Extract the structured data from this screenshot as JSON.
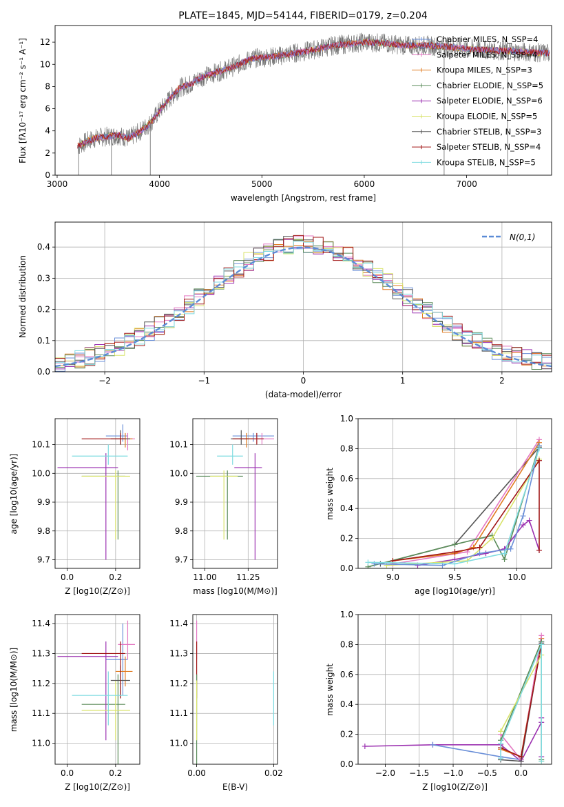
{
  "chart_data": [
    {
      "type": "line",
      "title": "PLATE=1845, MJD=54144, FIBERID=0179, z=0.204",
      "xlabel": "wavelength [Angstrom, rest frame]",
      "ylabel": "Flux [fλ10⁻¹⁷ erg cm⁻² s⁻¹ A⁻¹]",
      "xlim": [
        2980,
        7830
      ],
      "ylim": [
        0,
        13.5
      ],
      "xticks": [
        3000,
        4000,
        5000,
        6000,
        7000
      ],
      "yticks": [
        0,
        2,
        4,
        6,
        8,
        10,
        12
      ],
      "grid": false,
      "legend_position": "top-right",
      "spectrum_range": [
        3200,
        7810
      ],
      "continuum_x": [
        3200,
        3300,
        3400,
        3500,
        3600,
        3700,
        3800,
        3900,
        4000,
        4100,
        4200,
        4300,
        4400,
        4500,
        4600,
        4700,
        4800,
        4900,
        5000,
        5100,
        5200,
        5300,
        5400,
        5500,
        5600,
        5700,
        5800,
        5900,
        6000,
        6200,
        6400,
        6600,
        6800,
        7000,
        7200,
        7400,
        7600,
        7800
      ],
      "continuum_y": [
        2.6,
        3.1,
        3.4,
        3.5,
        3.6,
        3.3,
        3.9,
        4.6,
        5.8,
        6.9,
        7.9,
        8.2,
        8.8,
        9.1,
        9.4,
        9.7,
        10.1,
        10.5,
        10.6,
        10.7,
        10.8,
        11.0,
        11.1,
        11.3,
        11.5,
        11.7,
        11.8,
        11.9,
        12.0,
        11.9,
        11.7,
        11.7,
        11.6,
        11.4,
        11.3,
        11.2,
        11.1,
        11.0
      ],
      "series": [
        {
          "name": "Chabrier MILES, N_SSP=4",
          "color": "#6a8fd8"
        },
        {
          "name": "Salpeter MILES, N_SSP=4",
          "color": "#e377c2"
        },
        {
          "name": "Kroupa MILES, N_SSP=3",
          "color": "#e07b22"
        },
        {
          "name": "Chabrier ELODIE, N_SSP=5",
          "color": "#5b8c5a"
        },
        {
          "name": "Salpeter ELODIE, N_SSP=6",
          "color": "#9b30b0"
        },
        {
          "name": "Kroupa ELODIE, N_SSP=5",
          "color": "#d8e36a"
        },
        {
          "name": "Chabrier STELIB, N_SSP=3",
          "color": "#555555"
        },
        {
          "name": "Salpeter STELIB, N_SSP=4",
          "color": "#a01515"
        },
        {
          "name": "Kroupa STELIB, N_SSP=5",
          "color": "#7fdbe0"
        }
      ]
    },
    {
      "type": "histogram",
      "xlabel": "(data-model)/error",
      "ylabel": "Normed distribution",
      "xlim": [
        -2.5,
        2.5
      ],
      "ylim": [
        0,
        0.48
      ],
      "xticks": [
        -2,
        -1,
        0,
        1,
        2
      ],
      "yticks": [
        0.0,
        0.1,
        0.2,
        0.3,
        0.4
      ],
      "grid": true,
      "legend": "N(0,1)",
      "legend_position": "top-right",
      "bin_width": 0.1,
      "reference_curve": "gaussian mean 0 sigma 1",
      "series_colors": [
        "#6a8fd8",
        "#e377c2",
        "#e07b22",
        "#5b8c5a",
        "#9b30b0",
        "#d8e36a",
        "#555555",
        "#a01515",
        "#7fdbe0"
      ]
    },
    {
      "type": "errorbar",
      "xlabel": "Z [log10(Z/Z⊙)]",
      "ylabel": "age  [log10(age/yr)]",
      "xlim": [
        -0.05,
        0.3
      ],
      "ylim": [
        9.67,
        10.19
      ],
      "xticks": [
        0.0,
        0.2
      ],
      "yticks": [
        9.7,
        9.8,
        9.9,
        10.0,
        10.1
      ],
      "grid": true,
      "points": [
        {
          "color": "#6a8fd8",
          "x": 0.23,
          "xerr": [
            0.07,
            0.02
          ],
          "y": 10.13,
          "yerr": [
            0.02,
            0.04
          ]
        },
        {
          "color": "#e377c2",
          "x": 0.25,
          "xerr": [
            0.05,
            0.03
          ],
          "y": 10.12,
          "yerr": [
            0.04,
            0.02
          ]
        },
        {
          "color": "#e07b22",
          "x": 0.24,
          "xerr": [
            0.06,
            0.03
          ],
          "y": 10.12,
          "yerr": [
            0.03,
            0.02
          ]
        },
        {
          "color": "#5b8c5a",
          "x": 0.21,
          "xerr": [
            0.15,
            0.03
          ],
          "y": 9.99,
          "yerr": [
            0.22,
            0.02
          ]
        },
        {
          "color": "#9b30b0",
          "x": 0.16,
          "xerr": [
            0.2,
            0.05
          ],
          "y": 10.02,
          "yerr": [
            0.32,
            0.05
          ]
        },
        {
          "color": "#d8e36a",
          "x": 0.2,
          "xerr": [
            0.14,
            0.06
          ],
          "y": 9.99,
          "yerr": [
            0.22,
            0.02
          ]
        },
        {
          "color": "#555555",
          "x": 0.22,
          "xerr": [
            0.04,
            0.04
          ],
          "y": 10.12,
          "yerr": [
            0.02,
            0.03
          ]
        },
        {
          "color": "#a01515",
          "x": 0.22,
          "xerr": [
            0.16,
            0.02
          ],
          "y": 10.12,
          "yerr": [
            0.02,
            0.02
          ]
        },
        {
          "color": "#7fdbe0",
          "x": 0.17,
          "xerr": [
            0.15,
            0.08
          ],
          "y": 10.06,
          "yerr": [
            0.03,
            0.04
          ]
        }
      ]
    },
    {
      "type": "errorbar",
      "xlabel": "mass [log10(M/M⊙)]",
      "xlim": [
        10.93,
        11.42
      ],
      "ylim": [
        9.67,
        10.19
      ],
      "xticks": [
        11.0,
        11.25
      ],
      "yticks": [
        9.7,
        9.8,
        9.9,
        10.0,
        10.1
      ],
      "grid": true,
      "points": [
        {
          "color": "#6a8fd8",
          "x": 11.28,
          "xerr": [
            0.12,
            0.12
          ],
          "y": 10.13,
          "yerr": [
            0.02,
            0.01
          ]
        },
        {
          "color": "#e377c2",
          "x": 11.33,
          "xerr": [
            0.05,
            0.07
          ],
          "y": 10.12,
          "yerr": [
            0.02,
            0.02
          ]
        },
        {
          "color": "#e07b22",
          "x": 11.24,
          "xerr": [
            0.04,
            0.04
          ],
          "y": 10.12,
          "yerr": [
            0.03,
            0.02
          ]
        },
        {
          "color": "#5b8c5a",
          "x": 11.13,
          "xerr": [
            0.18,
            0.09
          ],
          "y": 9.99,
          "yerr": [
            0.22,
            0.02
          ]
        },
        {
          "color": "#9b30b0",
          "x": 11.29,
          "xerr": [
            0.12,
            0.04
          ],
          "y": 10.02,
          "yerr": [
            0.32,
            0.05
          ]
        },
        {
          "color": "#d8e36a",
          "x": 11.11,
          "xerr": [
            0.08,
            0.08
          ],
          "y": 9.99,
          "yerr": [
            0.22,
            0.02
          ]
        },
        {
          "color": "#555555",
          "x": 11.21,
          "xerr": [
            0.06,
            0.04
          ],
          "y": 10.12,
          "yerr": [
            0.02,
            0.03
          ]
        },
        {
          "color": "#a01515",
          "x": 11.3,
          "xerr": [
            0.14,
            0.04
          ],
          "y": 10.12,
          "yerr": [
            0.02,
            0.02
          ]
        },
        {
          "color": "#7fdbe0",
          "x": 11.16,
          "xerr": [
            0.09,
            0.06
          ],
          "y": 10.06,
          "yerr": [
            0.03,
            0.04
          ]
        }
      ]
    },
    {
      "type": "line",
      "xlabel": "age  [log10(age/yr)]",
      "ylabel": "mass weight",
      "xlim": [
        8.72,
        10.28
      ],
      "ylim": [
        0,
        1.0
      ],
      "xticks": [
        9.0,
        9.5,
        10.0
      ],
      "yticks": [
        0.0,
        0.2,
        0.4,
        0.6,
        0.8,
        1.0
      ],
      "grid": true,
      "series": [
        {
          "color": "#555555",
          "x": [
            8.9,
            9.5,
            10.18
          ],
          "y": [
            0.03,
            0.16,
            0.81
          ]
        },
        {
          "color": "#e377c2",
          "x": [
            9.0,
            9.6,
            10.18
          ],
          "y": [
            0.03,
            0.11,
            0.86
          ]
        },
        {
          "color": "#e07b22",
          "x": [
            9.0,
            9.5,
            9.65,
            10.18
          ],
          "y": [
            0.05,
            0.1,
            0.14,
            0.84
          ]
        },
        {
          "color": "#5b8c5a",
          "x": [
            8.8,
            9.5,
            9.8,
            9.9,
            10.18
          ],
          "y": [
            0.01,
            0.16,
            0.22,
            0.06,
            0.82
          ]
        },
        {
          "color": "#9b30b0",
          "x": [
            9.2,
            9.5,
            9.75,
            9.9,
            10.05,
            10.1,
            10.18
          ],
          "y": [
            0.02,
            0.06,
            0.1,
            0.13,
            0.29,
            0.32,
            0.12
          ]
        },
        {
          "color": "#d8e36a",
          "x": [
            8.95,
            9.6,
            9.8,
            10.18
          ],
          "y": [
            0.02,
            0.05,
            0.2,
            0.73
          ]
        },
        {
          "color": "#a01515",
          "x": [
            9.0,
            9.5,
            9.7,
            10.18,
            10.18
          ],
          "y": [
            0.05,
            0.11,
            0.14,
            0.72,
            0.12
          ]
        },
        {
          "color": "#6a8fd8",
          "x": [
            8.85,
            9.4,
            9.7,
            9.95,
            10.05,
            10.18
          ],
          "y": [
            0.03,
            0.02,
            0.1,
            0.13,
            0.35,
            0.82
          ]
        },
        {
          "color": "#7fdbe0",
          "x": [
            8.8,
            9.5,
            9.9,
            10.18
          ],
          "y": [
            0.04,
            0.03,
            0.1,
            0.8
          ]
        }
      ]
    },
    {
      "type": "errorbar",
      "xlabel": "Z [log10(Z/Z⊙)]",
      "ylabel": "mass [log10(M/M⊙)]",
      "xlim": [
        -0.05,
        0.3
      ],
      "ylim": [
        10.93,
        11.43
      ],
      "xticks": [
        0.0,
        0.2
      ],
      "yticks": [
        11.0,
        11.1,
        11.2,
        11.3,
        11.4
      ],
      "grid": true,
      "points": [
        {
          "color": "#6a8fd8",
          "x": 0.23,
          "xerr": [
            0.07,
            0.02
          ],
          "y": 11.28,
          "yerr": [
            0.12,
            0.12
          ]
        },
        {
          "color": "#e377c2",
          "x": 0.25,
          "xerr": [
            0.04,
            0.03
          ],
          "y": 11.33,
          "yerr": [
            0.05,
            0.08
          ]
        },
        {
          "color": "#e07b22",
          "x": 0.24,
          "xerr": [
            0.04,
            0.03
          ],
          "y": 11.24,
          "yerr": [
            0.05,
            0.05
          ]
        },
        {
          "color": "#5b8c5a",
          "x": 0.21,
          "xerr": [
            0.15,
            0.03
          ],
          "y": 11.13,
          "yerr": [
            0.2,
            0.1
          ]
        },
        {
          "color": "#9b30b0",
          "x": 0.16,
          "xerr": [
            0.2,
            0.05
          ],
          "y": 11.29,
          "yerr": [
            0.28,
            0.05
          ]
        },
        {
          "color": "#d8e36a",
          "x": 0.2,
          "xerr": [
            0.14,
            0.06
          ],
          "y": 11.11,
          "yerr": [
            0.1,
            0.1
          ]
        },
        {
          "color": "#555555",
          "x": 0.22,
          "xerr": [
            0.04,
            0.04
          ],
          "y": 11.21,
          "yerr": [
            0.06,
            0.05
          ]
        },
        {
          "color": "#a01515",
          "x": 0.22,
          "xerr": [
            0.16,
            0.02
          ],
          "y": 11.3,
          "yerr": [
            0.15,
            0.04
          ]
        },
        {
          "color": "#7fdbe0",
          "x": 0.17,
          "xerr": [
            0.15,
            0.08
          ],
          "y": 11.16,
          "yerr": [
            0.1,
            0.08
          ]
        }
      ]
    },
    {
      "type": "errorbar",
      "xlabel": "E(B-V)",
      "xlim": [
        -0.001,
        0.021
      ],
      "ylim": [
        10.93,
        11.43
      ],
      "xticks": [
        0.0,
        0.02
      ],
      "yticks": [
        11.0,
        11.1,
        11.2,
        11.3,
        11.4
      ],
      "grid": true,
      "points": [
        {
          "color": "#e377c2",
          "x": 0.0,
          "xerr": [
            0,
            0
          ],
          "y": 11.33,
          "yerr": [
            0.05,
            0.08
          ]
        },
        {
          "color": "#a01515",
          "x": 0.0,
          "xerr": [
            0,
            0
          ],
          "y": 11.3,
          "yerr": [
            0.15,
            0.04
          ]
        },
        {
          "color": "#5b8c5a",
          "x": 0.0,
          "xerr": [
            0,
            0
          ],
          "y": 11.13,
          "yerr": [
            0.2,
            0.1
          ]
        },
        {
          "color": "#d8e36a",
          "x": 0.0,
          "xerr": [
            0,
            0
          ],
          "y": 11.11,
          "yerr": [
            0.1,
            0.1
          ]
        },
        {
          "color": "#7fdbe0",
          "x": 0.02,
          "xerr": [
            0,
            0
          ],
          "y": 11.16,
          "yerr": [
            0.1,
            0.08
          ]
        }
      ]
    },
    {
      "type": "line",
      "xlabel": "Z [log10(Z/Z⊙)]",
      "ylabel": "mass weight",
      "xlim": [
        -2.4,
        0.45
      ],
      "ylim": [
        0,
        1.0
      ],
      "xticks": [
        -2.0,
        -1.5,
        -1.0,
        -0.5,
        0.0
      ],
      "yticks": [
        0.0,
        0.2,
        0.4,
        0.6,
        0.8,
        1.0
      ],
      "grid": true,
      "series": [
        {
          "color": "#9b30b0",
          "x": [
            -2.3,
            -1.3,
            -0.3,
            0.0,
            0.3,
            0.3,
            0.3
          ],
          "y": [
            0.12,
            0.13,
            0.13,
            0.02,
            0.28,
            0.31,
            0.05
          ]
        },
        {
          "color": "#6a8fd8",
          "x": [
            -1.3,
            -0.3,
            0.0,
            0.3,
            0.3
          ],
          "y": [
            0.13,
            0.05,
            0.03,
            0.82,
            0.82
          ]
        },
        {
          "color": "#e07b22",
          "x": [
            -0.3,
            0.0,
            0.3
          ],
          "y": [
            0.1,
            0.05,
            0.84
          ]
        },
        {
          "color": "#e377c2",
          "x": [
            -0.3,
            0.0,
            0.3
          ],
          "y": [
            0.2,
            0.03,
            0.86
          ]
        },
        {
          "color": "#555555",
          "x": [
            -0.3,
            0.0,
            0.3
          ],
          "y": [
            0.03,
            0.02,
            0.81
          ]
        },
        {
          "color": "#a01515",
          "x": [
            -0.3,
            0.0,
            0.3
          ],
          "y": [
            0.11,
            0.05,
            0.8
          ]
        },
        {
          "color": "#5b8c5a",
          "x": [
            -0.3,
            0.3,
            0.3
          ],
          "y": [
            0.16,
            0.82,
            0.03
          ]
        },
        {
          "color": "#d8e36a",
          "x": [
            -0.3,
            0.3,
            0.3
          ],
          "y": [
            0.22,
            0.73,
            0.02
          ]
        },
        {
          "color": "#7fdbe0",
          "x": [
            -0.3,
            -0.3,
            0.3,
            0.3
          ],
          "y": [
            0.04,
            0.14,
            0.8,
            0.02
          ]
        }
      ]
    }
  ]
}
